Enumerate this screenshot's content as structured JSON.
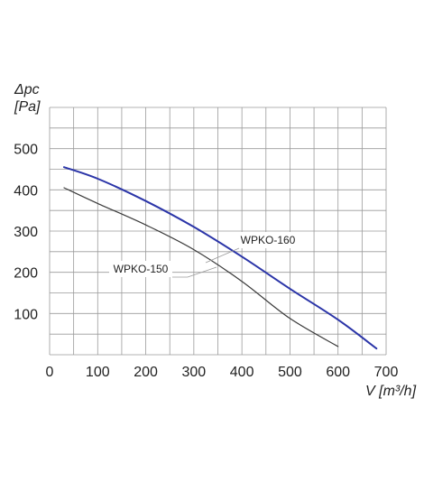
{
  "chart_data": {
    "type": "line",
    "y_axis": {
      "symbol": "Δpc",
      "unit": "[Pa]",
      "ticks": [
        100,
        200,
        300,
        400,
        500
      ],
      "range": [
        0,
        600
      ]
    },
    "x_axis": {
      "label": "V",
      "unit": "[m³/h]",
      "ticks": [
        0,
        100,
        200,
        300,
        400,
        500,
        600,
        700
      ],
      "range": [
        0,
        700
      ]
    },
    "grid": true,
    "series": [
      {
        "name": "WPKO-160",
        "color": "#2b35a8",
        "points": [
          [
            30,
            455
          ],
          [
            100,
            427
          ],
          [
            200,
            373
          ],
          [
            300,
            310
          ],
          [
            400,
            238
          ],
          [
            500,
            160
          ],
          [
            600,
            85
          ],
          [
            680,
            15
          ]
        ]
      },
      {
        "name": "WPKO-150",
        "color": "#3a3a3a",
        "points": [
          [
            30,
            405
          ],
          [
            100,
            367
          ],
          [
            200,
            315
          ],
          [
            300,
            255
          ],
          [
            400,
            178
          ],
          [
            500,
            88
          ],
          [
            600,
            20
          ]
        ]
      }
    ]
  }
}
